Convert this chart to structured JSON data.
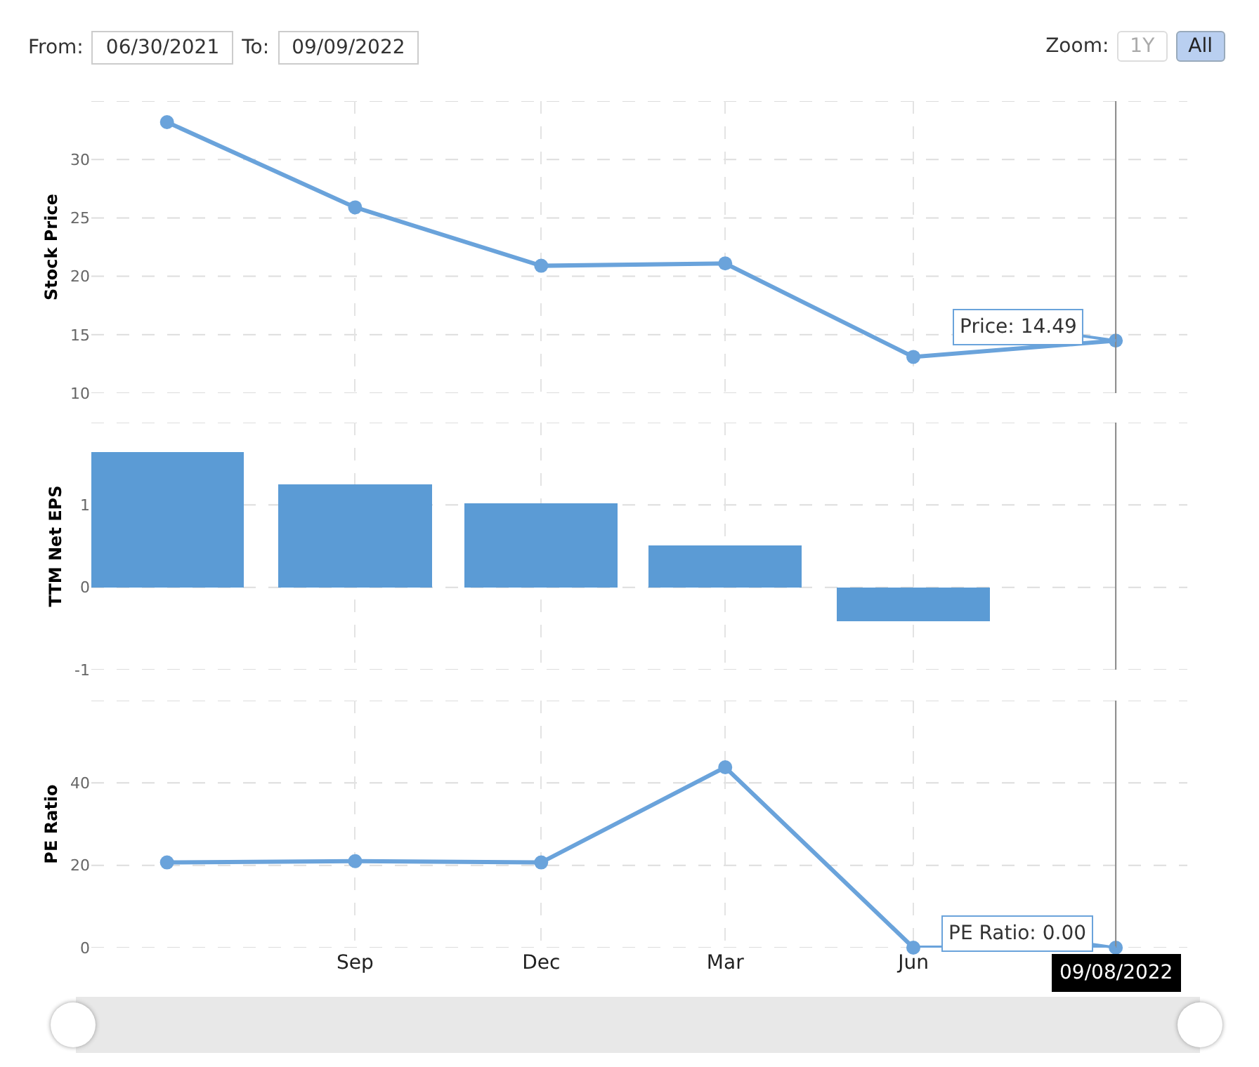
{
  "chart_data": [
    {
      "type": "line",
      "ylabel": "Stock Price",
      "x": [
        "2021-06-01",
        "2021-09-01",
        "2021-12-01",
        "2022-03-01",
        "2022-06-01",
        "2022-09-08"
      ],
      "xlim": [
        "2021-04-25",
        "2022-10-13"
      ],
      "xticks": [
        {
          "value": "2021-09-01",
          "label": null
        },
        {
          "value": "2021-12-01",
          "label": null
        },
        {
          "value": "2022-03-01",
          "label": null
        },
        {
          "value": "2022-06-01",
          "label": null
        }
      ],
      "series": [
        {
          "color": "#6aa3db",
          "values": [
            33.2,
            25.9,
            20.9,
            21.1,
            13.1,
            14.49
          ]
        }
      ],
      "ylim": [
        10,
        35
      ],
      "yticks": [
        10,
        15,
        20,
        25,
        30,
        {
          "value": 35,
          "label": null
        }
      ],
      "grid": true,
      "marker": "circle",
      "line_style": "solid",
      "tick_labels": "y",
      "ref_lines": [
        {
          "axis": "x",
          "value": "2022-09-08",
          "color": "#888888"
        }
      ],
      "annotations": [
        "From:",
        "06/30/2021",
        "To:",
        "09/09/2022",
        "Zoom:",
        "1Y",
        "All",
        {
          "text": "Price: 14.49",
          "x": "2022-09-08",
          "y": 14.49
        }
      ]
    },
    {
      "type": "bar",
      "ylabel": "TTM Net EPS",
      "x": [
        "2021-06-01",
        "2021-09-01",
        "2021-12-01",
        "2022-03-01",
        "2022-06-01"
      ],
      "xlim": [
        "2021-04-25",
        "2022-10-13"
      ],
      "xticks": [
        {
          "value": "2021-09-01",
          "label": null
        },
        {
          "value": "2021-12-01",
          "label": null
        },
        {
          "value": "2022-03-01",
          "label": null
        },
        {
          "value": "2022-06-01",
          "label": null
        }
      ],
      "series": [
        {
          "color": "#5b9bd5",
          "values": [
            1.64,
            1.25,
            1.02,
            0.51,
            -0.41
          ]
        }
      ],
      "ylim": [
        -1,
        2
      ],
      "yticks": [
        -1,
        0,
        1,
        {
          "value": 2,
          "label": null
        }
      ],
      "grid": true,
      "tick_labels": "y",
      "ref_lines": [
        {
          "axis": "x",
          "value": "2022-09-08",
          "color": "#888888"
        }
      ]
    },
    {
      "type": "line",
      "ylabel": "PE Ratio",
      "x": [
        "2021-06-01",
        "2021-09-01",
        "2021-12-01",
        "2022-03-01",
        "2022-06-01",
        "2022-09-08"
      ],
      "xlim": [
        "2021-04-25",
        "2022-10-13"
      ],
      "xticks": [
        {
          "value": "2021-09-01",
          "label": "Sep"
        },
        {
          "value": "2021-12-01",
          "label": "Dec"
        },
        {
          "value": "2022-03-01",
          "label": "Mar"
        },
        {
          "value": "2022-06-01",
          "label": "Jun"
        }
      ],
      "series": [
        {
          "color": "#6aa3db",
          "values": [
            20.7,
            21.0,
            20.7,
            43.8,
            0,
            0
          ]
        }
      ],
      "ylim": [
        0,
        60
      ],
      "yticks": [
        0,
        20,
        40,
        {
          "value": 60,
          "label": null
        }
      ],
      "grid": true,
      "marker": "circle",
      "line_style": "solid",
      "ref_lines": [
        {
          "axis": "x",
          "value": "2022-09-08",
          "color": "#888888",
          "label": "09/08/2022"
        }
      ],
      "annotations": [
        {
          "text": "PE Ratio: 0.00",
          "x": "2022-09-08",
          "y": 0
        }
      ]
    }
  ]
}
